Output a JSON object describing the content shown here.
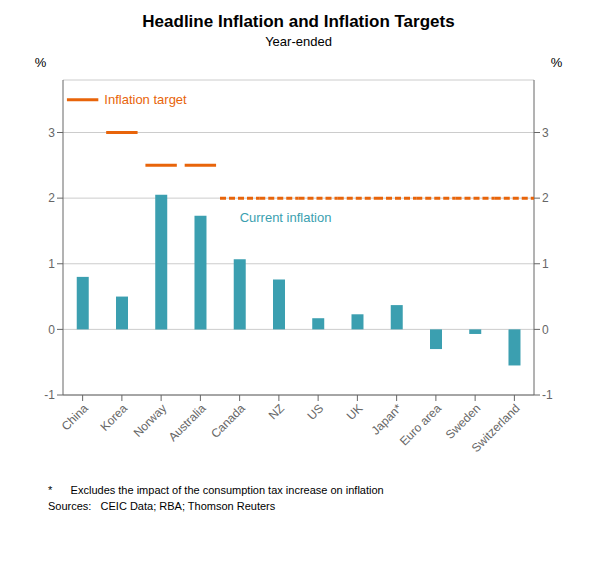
{
  "chart_data": {
    "type": "bar",
    "title": "Headline Inflation and Inflation Targets",
    "subtitle": "Year-ended",
    "categories": [
      "China",
      "Korea",
      "Norway",
      "Australia",
      "Canada",
      "NZ",
      "US",
      "UK",
      "Japan*",
      "Euro area",
      "Sweden",
      "Switzerland"
    ],
    "series": [
      {
        "type": "bar",
        "color": "#3B9FB0",
        "values": [
          0.8,
          0.5,
          2.05,
          1.73,
          1.07,
          0.76,
          0.17,
          0.23,
          0.37,
          -0.3,
          -0.07,
          -0.55
        ]
      },
      {
        "type": "target",
        "color": "#E8640A",
        "line_style": "solid",
        "values": [
          3.5,
          3.0,
          2.5,
          2.5,
          null,
          null,
          null,
          null,
          null,
          null,
          null,
          null
        ]
      },
      {
        "type": "target",
        "color": "#E8640A",
        "line_style": "dashed",
        "values": [
          null,
          null,
          null,
          null,
          2.0,
          2.0,
          2.0,
          2.0,
          2.0,
          2.0,
          2.0,
          2.0
        ]
      }
    ],
    "ylim": [
      -1,
      3.8
    ],
    "yticks": [
      -1,
      0,
      1,
      2,
      3
    ],
    "y2lim": [
      -1,
      3.8
    ],
    "y2ticks": [
      -1,
      0,
      1,
      2,
      3
    ],
    "y_label": "%",
    "y2_label": "%",
    "grid": true,
    "annotations": [
      {
        "text": "Inflation target",
        "color": "#E8640A"
      },
      {
        "text": "Current inflation",
        "color": "#3B9FB0"
      }
    ],
    "footnotes": [
      "*      Excludes the impact of the consumption tax increase on inflation",
      "Sources:   CEIC Data; RBA; Thomson Reuters"
    ]
  }
}
